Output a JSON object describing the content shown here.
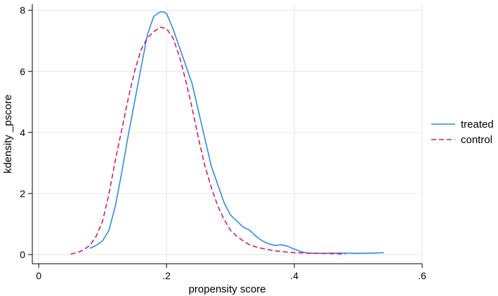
{
  "chart_data": {
    "type": "line",
    "title": "",
    "xlabel": "propensity score",
    "ylabel": "kdensity _pscore",
    "xlim": [
      -0.01,
      0.6
    ],
    "ylim": [
      -0.3,
      8.2
    ],
    "xticks": [
      {
        "value": 0,
        "label": "0"
      },
      {
        "value": 0.2,
        "label": ".2"
      },
      {
        "value": 0.4,
        "label": ".4"
      },
      {
        "value": 0.6,
        "label": ".6"
      }
    ],
    "yticks": [
      {
        "value": 0,
        "label": "0"
      },
      {
        "value": 2,
        "label": "2"
      },
      {
        "value": 4,
        "label": "4"
      },
      {
        "value": 6,
        "label": "6"
      },
      {
        "value": 8,
        "label": "8"
      }
    ],
    "grid": true,
    "legend": "right",
    "series": [
      {
        "name": "treated",
        "color": "#2f8be6",
        "dash": "solid",
        "x": [
          0.08,
          0.09,
          0.1,
          0.11,
          0.12,
          0.13,
          0.14,
          0.15,
          0.16,
          0.17,
          0.18,
          0.19,
          0.195,
          0.2,
          0.21,
          0.22,
          0.23,
          0.24,
          0.25,
          0.26,
          0.27,
          0.28,
          0.29,
          0.3,
          0.31,
          0.32,
          0.33,
          0.34,
          0.35,
          0.36,
          0.37,
          0.38,
          0.39,
          0.4,
          0.41,
          0.42,
          0.43,
          0.44,
          0.45,
          0.46,
          0.48,
          0.5,
          0.52,
          0.54
        ],
        "y": [
          0.2,
          0.3,
          0.45,
          0.8,
          1.6,
          2.7,
          3.9,
          5.0,
          6.1,
          7.2,
          7.8,
          7.95,
          7.95,
          7.9,
          7.4,
          6.8,
          6.2,
          5.6,
          4.7,
          3.8,
          2.9,
          2.3,
          1.7,
          1.3,
          1.1,
          0.9,
          0.8,
          0.6,
          0.45,
          0.35,
          0.3,
          0.32,
          0.27,
          0.18,
          0.1,
          0.05,
          0.04,
          0.04,
          0.04,
          0.05,
          0.05,
          0.04,
          0.05,
          0.06
        ]
      },
      {
        "name": "control",
        "color": "#d81b5a",
        "dash": "dashed",
        "x": [
          0.05,
          0.06,
          0.07,
          0.08,
          0.09,
          0.1,
          0.11,
          0.12,
          0.13,
          0.14,
          0.15,
          0.16,
          0.17,
          0.18,
          0.19,
          0.2,
          0.21,
          0.22,
          0.23,
          0.24,
          0.25,
          0.26,
          0.27,
          0.28,
          0.29,
          0.3,
          0.31,
          0.32,
          0.33,
          0.34,
          0.35,
          0.36,
          0.37,
          0.38,
          0.39,
          0.4,
          0.42,
          0.44,
          0.46,
          0.48
        ],
        "y": [
          0.02,
          0.06,
          0.15,
          0.3,
          0.6,
          1.1,
          2.0,
          3.1,
          4.1,
          5.1,
          6.0,
          6.7,
          7.1,
          7.3,
          7.45,
          7.4,
          7.1,
          6.5,
          5.7,
          4.8,
          3.8,
          2.9,
          2.2,
          1.6,
          1.15,
          0.8,
          0.6,
          0.45,
          0.32,
          0.25,
          0.2,
          0.16,
          0.12,
          0.1,
          0.08,
          0.06,
          0.05,
          0.04,
          0.03,
          0.02
        ]
      }
    ]
  }
}
